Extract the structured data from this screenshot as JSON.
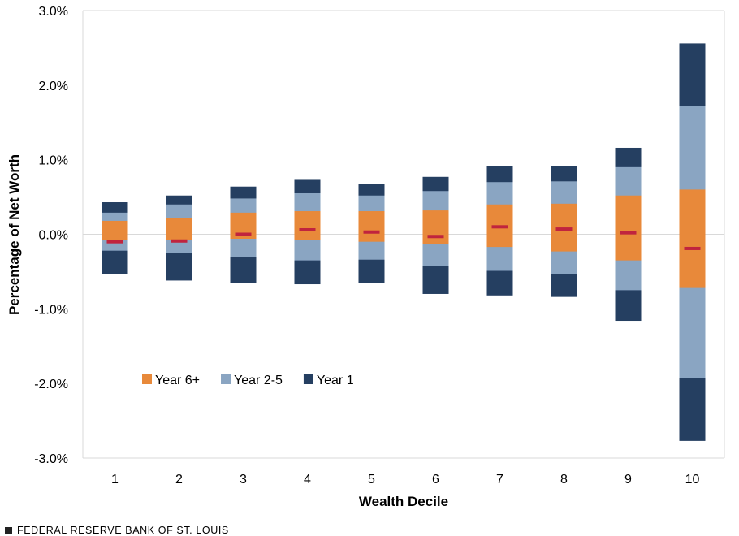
{
  "chart_data": {
    "type": "bar",
    "stacked": true,
    "categories": [
      "1",
      "2",
      "3",
      "4",
      "5",
      "6",
      "7",
      "8",
      "9",
      "10"
    ],
    "xlabel": "Wealth Decile",
    "ylabel": "Percentage of Net Worth",
    "ylim": [
      -3.0,
      3.0
    ],
    "yticks": [
      -3.0,
      -2.0,
      -1.0,
      0.0,
      1.0,
      2.0,
      3.0
    ],
    "ytick_labels": [
      "-3.0%",
      "-2.0%",
      "-1.0%",
      "0.0%",
      "1.0%",
      "2.0%",
      "3.0%"
    ],
    "grid": "horizontal at zero only",
    "legend_position": "lower-left inside plot",
    "series": [
      {
        "name": "Year 6+",
        "color": "#e8893a",
        "upper": [
          0.18,
          0.22,
          0.29,
          0.31,
          0.31,
          0.32,
          0.4,
          0.41,
          0.52,
          0.6
        ],
        "lower": [
          -0.08,
          -0.08,
          -0.06,
          -0.08,
          -0.1,
          -0.13,
          -0.17,
          -0.23,
          -0.35,
          -0.72
        ]
      },
      {
        "name": "Year 2-5",
        "color": "#8aa5c2",
        "upper": [
          0.29,
          0.4,
          0.48,
          0.55,
          0.52,
          0.58,
          0.7,
          0.71,
          0.9,
          1.72
        ],
        "lower": [
          -0.22,
          -0.25,
          -0.31,
          -0.35,
          -0.34,
          -0.43,
          -0.49,
          -0.53,
          -0.75,
          -1.93
        ]
      },
      {
        "name": "Year 1",
        "color": "#253f61",
        "upper": [
          0.43,
          0.52,
          0.64,
          0.73,
          0.67,
          0.77,
          0.92,
          0.91,
          1.16,
          2.56
        ],
        "lower": [
          -0.53,
          -0.62,
          -0.65,
          -0.67,
          -0.65,
          -0.8,
          -0.82,
          -0.84,
          -1.16,
          -2.77
        ]
      }
    ],
    "markers": {
      "color": "#c0243e",
      "values": [
        -0.1,
        -0.09,
        0.0,
        0.06,
        0.03,
        -0.03,
        0.1,
        0.07,
        0.02,
        -0.19
      ]
    }
  },
  "footer": {
    "source": "FEDERAL RESERVE BANK OF ST. LOUIS"
  }
}
